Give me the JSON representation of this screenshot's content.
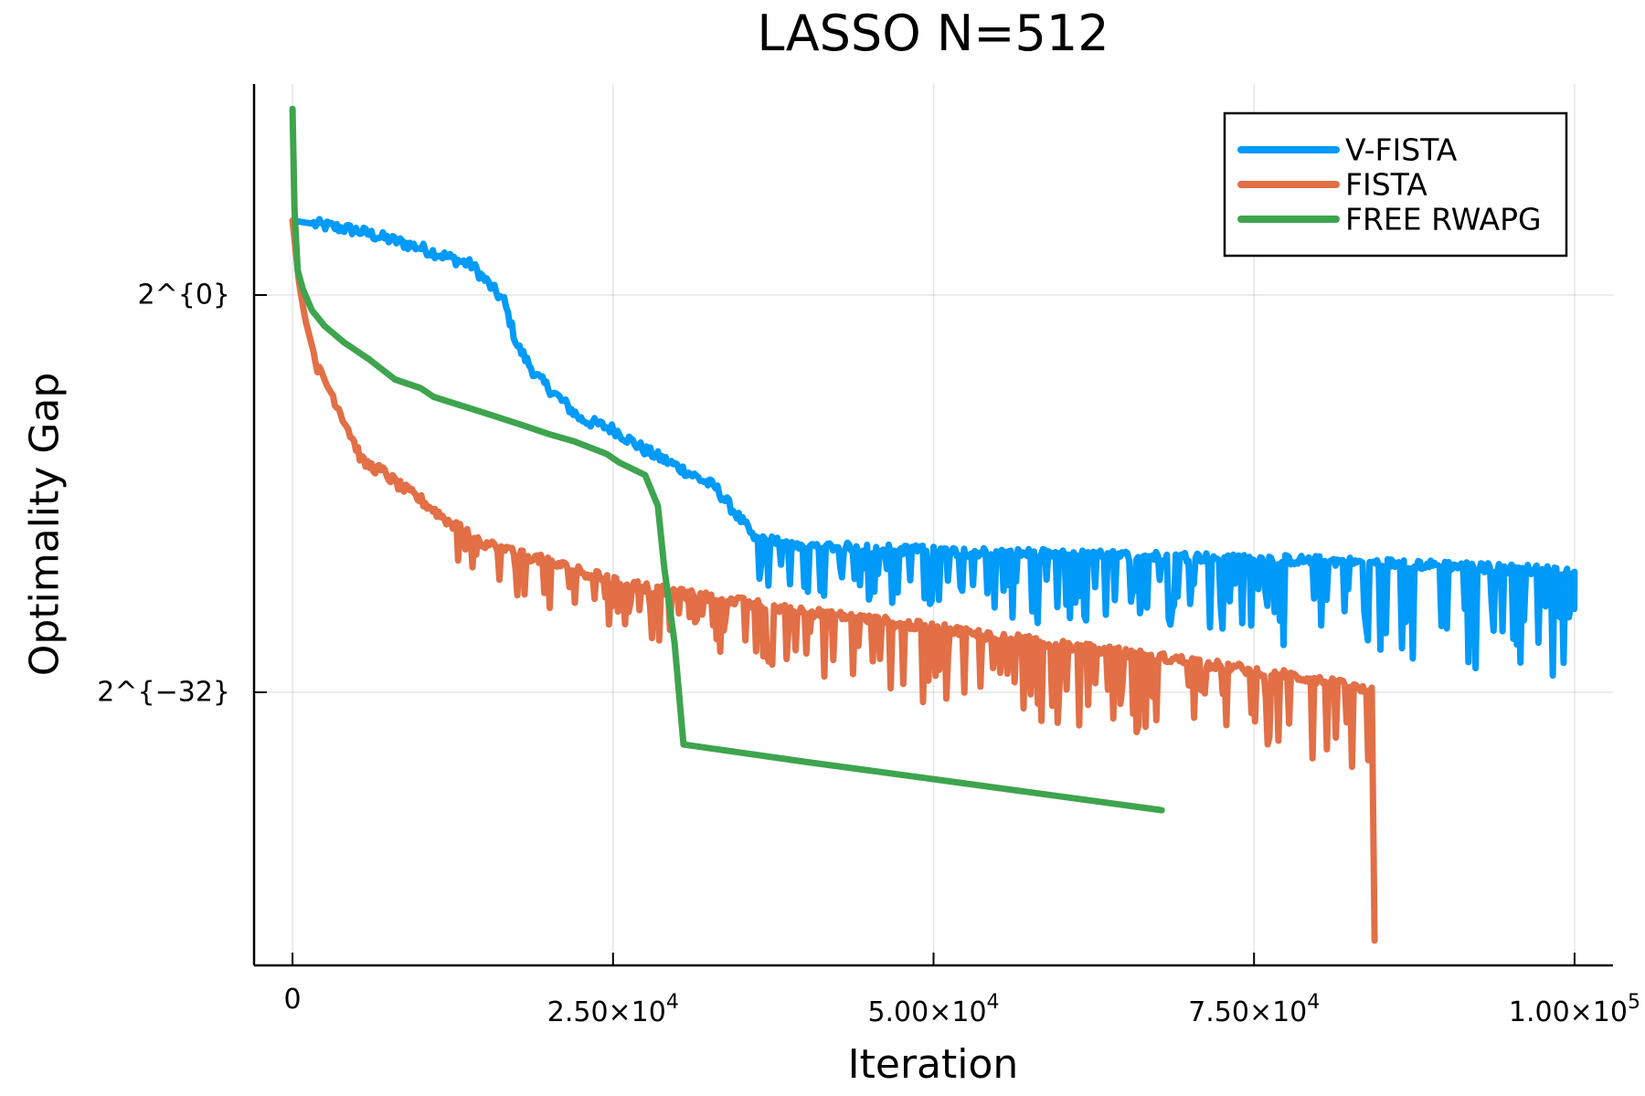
{
  "chart_data": {
    "type": "line",
    "title": "LASSO N=512",
    "xlabel": "Iteration",
    "ylabel": "Optimality Gap",
    "yscale": "log2",
    "xlim": [
      -3000,
      103000
    ],
    "ylim_log2": [
      -54,
      17
    ],
    "grid": true,
    "legend_position": "top-right",
    "xticks": [
      {
        "value": 0,
        "mantissa": "0",
        "exp": ""
      },
      {
        "value": 25000,
        "mantissa": "2.50×10",
        "exp": "4"
      },
      {
        "value": 50000,
        "mantissa": "5.00×10",
        "exp": "4"
      },
      {
        "value": 75000,
        "mantissa": "7.50×10",
        "exp": "4"
      },
      {
        "value": 100000,
        "mantissa": "1.00×10",
        "exp": "5"
      }
    ],
    "yticks": [
      {
        "log2": 0,
        "label": "2^{0}"
      },
      {
        "log2": -32,
        "label": "2^{−32}"
      }
    ],
    "series": [
      {
        "name": "V-FISTA",
        "color": "#009af9",
        "y_unit": "log2",
        "x": [
          0,
          5000,
          10000,
          14000,
          16500,
          17500,
          19000,
          22500,
          25000,
          27500,
          30000,
          33000,
          36000,
          40000,
          50000,
          60000,
          70000,
          80000,
          90000,
          100000
        ],
        "y": [
          6,
          5.2,
          3.8,
          2.4,
          -0.5,
          -4,
          -6.5,
          -10,
          -10.8,
          -12.5,
          -13.8,
          -15.5,
          -19.5,
          -20.2,
          -20.6,
          -20.9,
          -21.1,
          -21.4,
          -21.8,
          -22.3
        ],
        "oscillation_start": 36000,
        "oscillation_min_envelope": [
          [
            36000,
            -23.5
          ],
          [
            50000,
            -25.5
          ],
          [
            75000,
            -27.5
          ],
          [
            100000,
            -31.5
          ]
        ]
      },
      {
        "name": "FISTA",
        "color": "#e26f46",
        "y_unit": "log2",
        "x": [
          0,
          500,
          1000,
          2000,
          3000,
          4000,
          5500,
          7000,
          8500,
          10000,
          12500,
          15000,
          20000,
          25000,
          30000,
          40000,
          50000,
          60000,
          70000,
          80000,
          84300,
          84400
        ],
        "y": [
          6,
          1,
          -2,
          -6,
          -7.8,
          -10,
          -13.5,
          -14.2,
          -15.5,
          -16.5,
          -18.5,
          -20,
          -21.5,
          -23,
          -24,
          -25.5,
          -26.8,
          -28.2,
          -29.5,
          -31,
          -32,
          -52
        ],
        "oscillation_start": 12500,
        "oscillation_min_envelope": [
          [
            12500,
            -22
          ],
          [
            25000,
            -27
          ],
          [
            50000,
            -33
          ],
          [
            75000,
            -36
          ],
          [
            84000,
            -38
          ]
        ]
      },
      {
        "name": "FREE RWAPG",
        "color": "#3ea44e",
        "y_unit": "log2",
        "x": [
          0,
          150,
          400,
          800,
          1500,
          2500,
          4000,
          6000,
          8000,
          10000,
          11000,
          15000,
          18000,
          20000,
          22000,
          24500,
          25500,
          27500,
          28500,
          29000,
          29800,
          30500,
          40000,
          50000,
          60000,
          67800
        ],
        "y": [
          15,
          7,
          2,
          0.5,
          -1.2,
          -2.5,
          -3.8,
          -5.2,
          -6.8,
          -7.5,
          -8.2,
          -9.5,
          -10.5,
          -11.2,
          -11.8,
          -12.8,
          -13.5,
          -14.5,
          -17,
          -22,
          -28,
          -36.2,
          -37.6,
          -39,
          -40.4,
          -41.5
        ]
      }
    ]
  }
}
